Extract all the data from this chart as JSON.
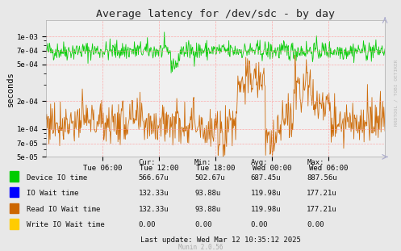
{
  "title": "Average latency for /dev/sdc - by day",
  "ylabel": "seconds",
  "background_color": "#e8e8e8",
  "plot_bg_color": "#f0f0f0",
  "grid_color": "#ff9999",
  "ylim_log": [
    5e-05,
    0.0015
  ],
  "yticks": [
    5e-05,
    7e-05,
    0.0001,
    0.0002,
    0.0005,
    0.0007,
    0.001
  ],
  "ytick_labels": [
    "5e-05",
    "7e-05",
    "1e-04",
    "2e-04",
    "5e-04",
    "7e-04",
    "1e-03"
  ],
  "xtick_labels": [
    "Tue 06:00",
    "Tue 12:00",
    "Tue 18:00",
    "Wed 00:00",
    "Wed 06:00"
  ],
  "xtick_positions": [
    0.1667,
    0.3333,
    0.5,
    0.6667,
    0.8333
  ],
  "legend_entries": [
    {
      "label": "Device IO time",
      "color": "#00cc00"
    },
    {
      "label": "IO Wait time",
      "color": "#0000ff"
    },
    {
      "label": "Read IO Wait time",
      "color": "#cc6600"
    },
    {
      "label": "Write IO Wait time",
      "color": "#ffcc00"
    }
  ],
  "stats_headers": [
    "Cur:",
    "Min:",
    "Avg:",
    "Max:"
  ],
  "stats_rows": [
    [
      "Device IO time",
      "566.67u",
      "502.67u",
      "687.45u",
      "887.56u"
    ],
    [
      "IO Wait time",
      "132.33u",
      "93.88u",
      "119.98u",
      "177.21u"
    ],
    [
      "Read IO Wait time",
      "132.33u",
      "93.88u",
      "119.98u",
      "177.21u"
    ],
    [
      "Write IO Wait time",
      "0.00",
      "0.00",
      "0.00",
      "0.00"
    ]
  ],
  "last_update": "Last update: Wed Mar 12 10:35:12 2025",
  "munin_version": "Munin 2.0.56",
  "rrdtool_text": "RRDTOOL / TOBI OETIKER"
}
